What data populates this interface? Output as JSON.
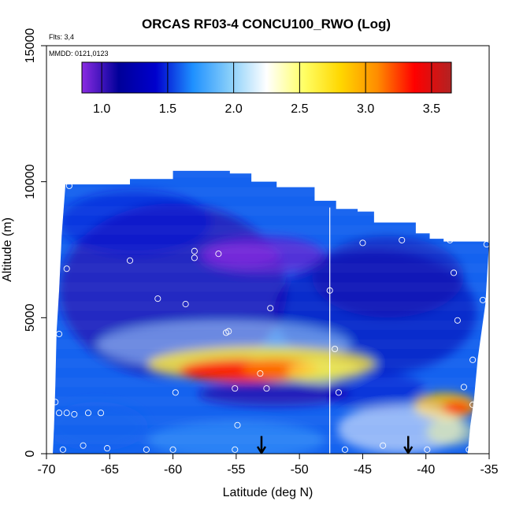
{
  "chart_data": {
    "type": "heatmap",
    "title": "ORCAS RF03-4 CONCU100_RWO (Log)",
    "notes": {
      "flights": "Flts: 3,4",
      "dates": "MMDD: 0121,0123"
    },
    "xlabel": "Latitude (deg N)",
    "ylabel": "Altitude (m)",
    "xlim": [
      -70,
      -35
    ],
    "ylim": [
      0,
      15000
    ],
    "x_ticks": [
      -70,
      -65,
      -60,
      -55,
      -50,
      -45,
      -40,
      -35
    ],
    "x_tick_labels": [
      "-70",
      "-65",
      "-60",
      "-55",
      "-50",
      "-45",
      "-40",
      "-35"
    ],
    "y_ticks": [
      0,
      5000,
      10000,
      15000
    ],
    "y_tick_labels": [
      "0",
      "5000",
      "10000",
      "15000"
    ],
    "colorbar": {
      "range": [
        0.85,
        3.65
      ],
      "ticks": [
        1.0,
        1.5,
        2.0,
        2.5,
        3.0,
        3.5
      ],
      "tick_labels": [
        "1.0",
        "1.5",
        "2.0",
        "2.5",
        "3.0",
        "3.5"
      ],
      "colors": [
        "#8a2be2",
        "#000099",
        "#0000cd",
        "#1e90ff",
        "#87cefa",
        "#ffffff",
        "#ffff66",
        "#ffd700",
        "#ff8c00",
        "#ff0000",
        "#b22222"
      ]
    },
    "vertical_line_lat": -47.6,
    "arrows_lat": [
      -53,
      -41.4
    ],
    "top_profile": [
      [
        -69,
        9900
      ],
      [
        -64.5,
        9900
      ],
      [
        -63.4,
        10100
      ],
      [
        -60,
        10400
      ],
      [
        -57,
        10400
      ],
      [
        -55.5,
        10300
      ],
      [
        -53.8,
        10000
      ],
      [
        -51.8,
        9800
      ],
      [
        -48.8,
        9300
      ],
      [
        -47.1,
        9000
      ],
      [
        -45.4,
        8900
      ],
      [
        -44.1,
        8500
      ],
      [
        -40.8,
        8100
      ],
      [
        -39.7,
        7900
      ],
      [
        -38.6,
        7800
      ],
      [
        -35,
        7800
      ]
    ],
    "left_profile": [
      [
        9900,
        -68.5
      ],
      [
        8000,
        -68.8
      ],
      [
        6000,
        -69.0
      ],
      [
        4500,
        -69.2
      ],
      [
        2500,
        -69.3
      ],
      [
        1000,
        -69.4
      ],
      [
        0,
        -69.5
      ]
    ],
    "right_profile": [
      [
        7800,
        -35.0
      ],
      [
        5500,
        -35.3
      ],
      [
        4500,
        -35.6
      ],
      [
        3500,
        -35.9
      ],
      [
        2000,
        -36.2
      ],
      [
        1000,
        -36.5
      ],
      [
        0,
        -36.7
      ]
    ],
    "features": [
      {
        "lat": -60,
        "alt": 6000,
        "rx": 9,
        "ry": 3200,
        "value": 1.05,
        "alpha": 0.7
      },
      {
        "lat": -53,
        "alt": 7300,
        "rx": 5,
        "ry": 700,
        "value": 0.92,
        "alpha": 0.75
      },
      {
        "lat": -54.5,
        "alt": 7300,
        "rx": 3,
        "ry": 400,
        "value": 0.85,
        "alpha": 0.6
      },
      {
        "lat": -44,
        "alt": 5200,
        "rx": 8,
        "ry": 2300,
        "value": 1.25,
        "alpha": 0.55
      },
      {
        "lat": -43,
        "alt": 6500,
        "rx": 6,
        "ry": 1500,
        "value": 1.1,
        "alpha": 0.45
      },
      {
        "lat": -56,
        "alt": 4000,
        "rx": 10,
        "ry": 900,
        "value": 2.05,
        "alpha": 0.55
      },
      {
        "lat": -53,
        "alt": 3300,
        "rx": 9,
        "ry": 650,
        "value": 2.7,
        "alpha": 0.8
      },
      {
        "lat": -54.5,
        "alt": 3050,
        "rx": 5,
        "ry": 420,
        "value": 3.35,
        "alpha": 0.85
      },
      {
        "lat": -51.5,
        "alt": 3150,
        "rx": 3,
        "ry": 380,
        "value": 3.1,
        "alpha": 0.7
      },
      {
        "lat": -48,
        "alt": 3000,
        "rx": 3,
        "ry": 450,
        "value": 2.55,
        "alpha": 0.55
      },
      {
        "lat": -52,
        "alt": 2200,
        "rx": 6,
        "ry": 450,
        "value": 1.05,
        "alpha": 0.8
      },
      {
        "lat": -44,
        "alt": 2300,
        "rx": 4,
        "ry": 700,
        "value": 1.35,
        "alpha": 0.45
      },
      {
        "lat": -38.5,
        "alt": 1750,
        "rx": 2.5,
        "ry": 500,
        "value": 2.9,
        "alpha": 0.85
      },
      {
        "lat": -37.5,
        "alt": 1700,
        "rx": 1.2,
        "ry": 250,
        "value": 3.3,
        "alpha": 0.8
      },
      {
        "lat": -42,
        "alt": 900,
        "rx": 5,
        "ry": 900,
        "value": 2.25,
        "alpha": 0.55
      },
      {
        "lat": -38,
        "alt": 800,
        "rx": 2,
        "ry": 500,
        "value": 2.45,
        "alpha": 0.5
      },
      {
        "lat": -66,
        "alt": 1000,
        "rx": 4,
        "ry": 900,
        "value": 1.6,
        "alpha": 0.6
      },
      {
        "lat": -55,
        "alt": 500,
        "rx": 7,
        "ry": 700,
        "value": 1.8,
        "alpha": 0.45
      },
      {
        "lat": -63,
        "alt": 8500,
        "rx": 6,
        "ry": 1200,
        "value": 1.45,
        "alpha": 0.55
      }
    ],
    "observation_points": [
      [
        -68.2,
        9850
      ],
      [
        -68.4,
        6800
      ],
      [
        -63.4,
        7100
      ],
      [
        -58.3,
        7200
      ],
      [
        -58.3,
        7450
      ],
      [
        -56.4,
        7350
      ],
      [
        -61.2,
        5700
      ],
      [
        -59.0,
        5500
      ],
      [
        -55.8,
        4450
      ],
      [
        -55.6,
        4500
      ],
      [
        -52.3,
        5350
      ],
      [
        -69.0,
        4400
      ],
      [
        -69.3,
        1900
      ],
      [
        -69.0,
        1500
      ],
      [
        -68.4,
        1500
      ],
      [
        -67.8,
        1450
      ],
      [
        -66.7,
        1500
      ],
      [
        -65.7,
        1500
      ],
      [
        -67.1,
        300
      ],
      [
        -68.7,
        150
      ],
      [
        -65.2,
        200
      ],
      [
        -62.1,
        150
      ],
      [
        -60.0,
        150
      ],
      [
        -55.1,
        150
      ],
      [
        -53.1,
        2950
      ],
      [
        -55.1,
        2400
      ],
      [
        -52.6,
        2400
      ],
      [
        -59.8,
        2250
      ],
      [
        -54.9,
        1050
      ],
      [
        -47.6,
        6000
      ],
      [
        -47.2,
        3850
      ],
      [
        -46.9,
        2250
      ],
      [
        -45.0,
        7750
      ],
      [
        -41.9,
        7850
      ],
      [
        -38.1,
        7850
      ],
      [
        -37.8,
        6650
      ],
      [
        -37.5,
        4900
      ],
      [
        -35.5,
        5650
      ],
      [
        -36.3,
        3450
      ],
      [
        -35.2,
        7700
      ],
      [
        -37.0,
        2450
      ],
      [
        -36.3,
        1800
      ],
      [
        -46.4,
        150
      ],
      [
        -43.4,
        300
      ],
      [
        -39.9,
        150
      ],
      [
        -36.6,
        150
      ]
    ]
  }
}
